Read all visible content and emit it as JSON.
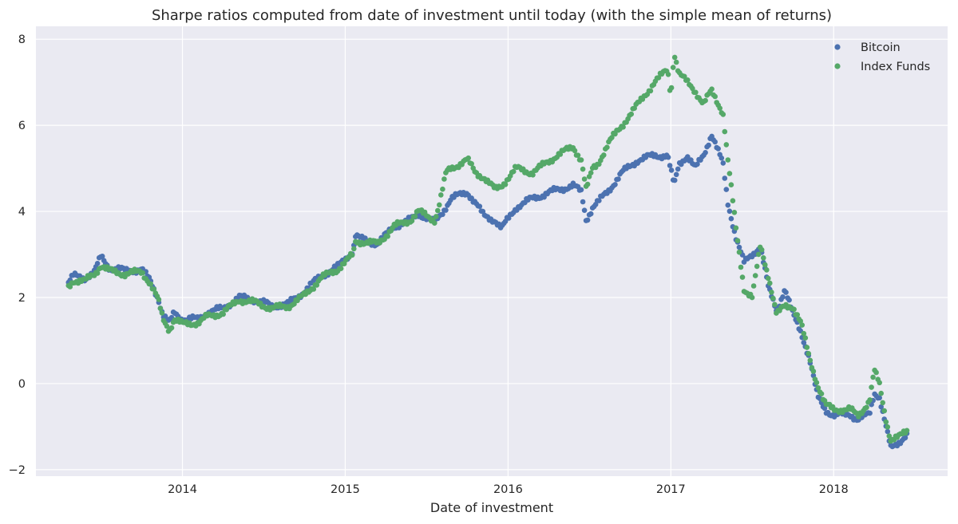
{
  "chart_data": {
    "type": "scatter",
    "title": "Sharpe ratios computed from date of investment until today (with the simple mean of returns)",
    "xlabel": "Date of investment",
    "ylabel": "",
    "xlim": [
      2013.1,
      2018.7
    ],
    "ylim": [
      -2.15,
      8.3
    ],
    "xticks": [
      2014,
      2015,
      2016,
      2017,
      2018
    ],
    "xtick_labels": [
      "2014",
      "2015",
      "2016",
      "2017",
      "2018"
    ],
    "yticks": [
      -2,
      0,
      2,
      4,
      6,
      8
    ],
    "ytick_labels": [
      "−2",
      "0",
      "2",
      "4",
      "6",
      "8"
    ],
    "grid": true,
    "legend_position": "top-right",
    "series": [
      {
        "name": "Bitcoin",
        "color": "#4c72b0",
        "anchors": [
          [
            2013.3,
            2.35
          ],
          [
            2013.33,
            2.5
          ],
          [
            2013.4,
            2.45
          ],
          [
            2013.46,
            2.6
          ],
          [
            2013.5,
            2.95
          ],
          [
            2013.55,
            2.7
          ],
          [
            2013.65,
            2.62
          ],
          [
            2013.75,
            2.65
          ],
          [
            2013.8,
            2.4
          ],
          [
            2013.85,
            2.0
          ],
          [
            2013.88,
            1.6
          ],
          [
            2013.92,
            1.4
          ],
          [
            2013.95,
            1.65
          ],
          [
            2014.0,
            1.5
          ],
          [
            2014.1,
            1.5
          ],
          [
            2014.15,
            1.65
          ],
          [
            2014.25,
            1.75
          ],
          [
            2014.35,
            2.0
          ],
          [
            2014.45,
            1.95
          ],
          [
            2014.55,
            1.8
          ],
          [
            2014.65,
            1.85
          ],
          [
            2014.75,
            2.15
          ],
          [
            2014.85,
            2.5
          ],
          [
            2014.95,
            2.7
          ],
          [
            2015.05,
            3.1
          ],
          [
            2015.06,
            3.45
          ],
          [
            2015.1,
            3.35
          ],
          [
            2015.2,
            3.25
          ],
          [
            2015.3,
            3.65
          ],
          [
            2015.4,
            3.8
          ],
          [
            2015.45,
            3.95
          ],
          [
            2015.55,
            3.75
          ],
          [
            2015.6,
            4.0
          ],
          [
            2015.65,
            4.3
          ],
          [
            2015.75,
            4.45
          ],
          [
            2015.8,
            4.2
          ],
          [
            2015.85,
            3.9
          ],
          [
            2015.92,
            3.8
          ],
          [
            2015.96,
            3.6
          ],
          [
            2016.05,
            4.1
          ],
          [
            2016.15,
            4.3
          ],
          [
            2016.3,
            4.5
          ],
          [
            2016.4,
            4.6
          ],
          [
            2016.45,
            4.45
          ],
          [
            2016.48,
            3.8
          ],
          [
            2016.52,
            4.1
          ],
          [
            2016.55,
            4.2
          ],
          [
            2016.62,
            4.5
          ],
          [
            2016.7,
            4.9
          ],
          [
            2016.8,
            5.2
          ],
          [
            2016.9,
            5.3
          ],
          [
            2016.98,
            5.3
          ],
          [
            2017.02,
            4.6
          ],
          [
            2017.05,
            5.1
          ],
          [
            2017.1,
            5.3
          ],
          [
            2017.15,
            5.0
          ],
          [
            2017.2,
            5.3
          ],
          [
            2017.25,
            5.8
          ],
          [
            2017.32,
            5.1
          ],
          [
            2017.35,
            4.2
          ],
          [
            2017.4,
            3.4
          ],
          [
            2017.45,
            2.8
          ],
          [
            2017.5,
            3.0
          ],
          [
            2017.55,
            3.2
          ],
          [
            2017.6,
            2.2
          ],
          [
            2017.65,
            1.7
          ],
          [
            2017.7,
            2.2
          ],
          [
            2017.75,
            1.6
          ],
          [
            2017.8,
            1.2
          ],
          [
            2017.85,
            0.6
          ],
          [
            2017.9,
            -0.3
          ],
          [
            2017.95,
            -0.6
          ],
          [
            2018.0,
            -0.75
          ],
          [
            2018.1,
            -0.7
          ],
          [
            2018.15,
            -0.85
          ],
          [
            2018.22,
            -0.7
          ],
          [
            2018.25,
            -0.2
          ],
          [
            2018.28,
            -0.3
          ],
          [
            2018.32,
            -1.0
          ],
          [
            2018.35,
            -1.5
          ],
          [
            2018.4,
            -1.35
          ],
          [
            2018.45,
            -1.2
          ]
        ]
      },
      {
        "name": "Index Funds",
        "color": "#55a868",
        "anchors": [
          [
            2013.3,
            2.25
          ],
          [
            2013.33,
            2.4
          ],
          [
            2013.4,
            2.38
          ],
          [
            2013.46,
            2.55
          ],
          [
            2013.5,
            2.75
          ],
          [
            2013.55,
            2.62
          ],
          [
            2013.65,
            2.55
          ],
          [
            2013.75,
            2.6
          ],
          [
            2013.8,
            2.35
          ],
          [
            2013.85,
            1.95
          ],
          [
            2013.88,
            1.5
          ],
          [
            2013.92,
            1.25
          ],
          [
            2013.95,
            1.5
          ],
          [
            2014.0,
            1.38
          ],
          [
            2014.1,
            1.42
          ],
          [
            2014.15,
            1.55
          ],
          [
            2014.25,
            1.65
          ],
          [
            2014.35,
            1.95
          ],
          [
            2014.45,
            1.88
          ],
          [
            2014.55,
            1.75
          ],
          [
            2014.65,
            1.8
          ],
          [
            2014.75,
            2.05
          ],
          [
            2014.85,
            2.45
          ],
          [
            2014.95,
            2.65
          ],
          [
            2015.05,
            3.0
          ],
          [
            2015.06,
            3.3
          ],
          [
            2015.1,
            3.3
          ],
          [
            2015.2,
            3.25
          ],
          [
            2015.3,
            3.65
          ],
          [
            2015.4,
            3.8
          ],
          [
            2015.45,
            4.0
          ],
          [
            2015.55,
            3.8
          ],
          [
            2015.58,
            4.2
          ],
          [
            2015.62,
            4.9
          ],
          [
            2015.65,
            5.0
          ],
          [
            2015.75,
            5.2
          ],
          [
            2015.8,
            4.9
          ],
          [
            2015.85,
            4.8
          ],
          [
            2015.92,
            4.5
          ],
          [
            2015.96,
            4.6
          ],
          [
            2016.05,
            5.0
          ],
          [
            2016.15,
            4.9
          ],
          [
            2016.3,
            5.3
          ],
          [
            2016.4,
            5.5
          ],
          [
            2016.45,
            5.2
          ],
          [
            2016.48,
            4.5
          ],
          [
            2016.52,
            5.0
          ],
          [
            2016.55,
            5.1
          ],
          [
            2016.62,
            5.6
          ],
          [
            2016.7,
            6.0
          ],
          [
            2016.8,
            6.5
          ],
          [
            2016.9,
            7.0
          ],
          [
            2016.98,
            7.3
          ],
          [
            2017.0,
            6.7
          ],
          [
            2017.02,
            7.7
          ],
          [
            2017.05,
            7.2
          ],
          [
            2017.1,
            7.0
          ],
          [
            2017.15,
            6.8
          ],
          [
            2017.2,
            6.5
          ],
          [
            2017.25,
            6.8
          ],
          [
            2017.32,
            6.3
          ],
          [
            2017.35,
            5.2
          ],
          [
            2017.4,
            3.6
          ],
          [
            2017.45,
            2.2
          ],
          [
            2017.5,
            2.0
          ],
          [
            2017.55,
            3.2
          ],
          [
            2017.6,
            2.5
          ],
          [
            2017.65,
            1.6
          ],
          [
            2017.7,
            1.8
          ],
          [
            2017.75,
            1.8
          ],
          [
            2017.8,
            1.4
          ],
          [
            2017.85,
            0.6
          ],
          [
            2017.9,
            0.0
          ],
          [
            2017.95,
            -0.5
          ],
          [
            2018.0,
            -0.6
          ],
          [
            2018.1,
            -0.6
          ],
          [
            2018.15,
            -0.75
          ],
          [
            2018.22,
            -0.4
          ],
          [
            2018.25,
            0.3
          ],
          [
            2018.28,
            0.0
          ],
          [
            2018.32,
            -0.8
          ],
          [
            2018.35,
            -1.3
          ],
          [
            2018.4,
            -1.25
          ],
          [
            2018.45,
            -1.1
          ]
        ]
      }
    ]
  }
}
